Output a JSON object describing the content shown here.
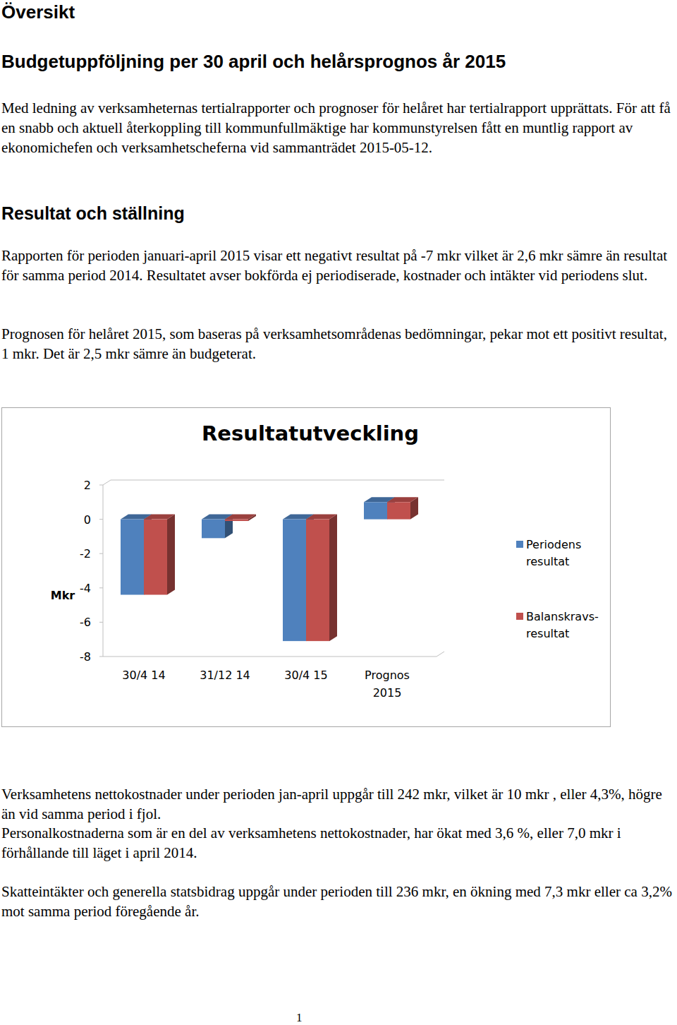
{
  "document": {
    "heading": "Översikt",
    "title": "Budgetuppföljning per 30 april och helårsprognos år 2015",
    "intro": "Med ledning av verksamheternas tertialrapporter och prognoser för helåret har tertialrapport upprättats. För att få en snabb och aktuell återkoppling till kommunfullmäktige har kommunstyrelsen fått en muntlig rapport av ekonomichefen och verksamhetscheferna vid sammanträdet 2015-05-12.",
    "section_heading": "Resultat och ställning",
    "paragraphs_before": [
      "Rapporten för perioden januari-april 2015 visar ett negativt resultat på -7 mkr vilket är 2,6 mkr sämre än resultat för samma period 2014. Resultatet avser bokförda ej periodiserade, kostnader och intäkter vid periodens slut.",
      "Prognosen för helåret 2015, som baseras på verksamhetsområdenas bedömningar, pekar mot ett positivt resultat, 1 mkr. Det är 2,5 mkr sämre än budgeterat."
    ],
    "paragraphs_after": [
      "Verksamhetens nettokostnader under perioden jan-april uppgår till 242 mkr, vilket är 10 mkr , eller 4,3%, högre än vid samma period i fjol.",
      "Personalkostnaderna som är en del av verksamhetens nettokostnader, har ökat med 3,6 %, eller 7,0 mkr i förhållande till läget i april 2014.",
      "Skatteintäkter och generella statsbidrag uppgår under perioden till 236 mkr, en ökning med 7,3 mkr eller ca 3,2% mot samma period föregående år."
    ],
    "page_number": "1"
  },
  "chart_data": {
    "type": "bar",
    "title": "Resultatutveckling",
    "y_label": "Mkr",
    "categories": [
      "30/4  14",
      "31/12 14",
      "30/4 15",
      "Prognos\n2015"
    ],
    "series": [
      {
        "name": "Periodens\nresultat",
        "color": "#4f81bd",
        "values": [
          -4.4,
          -1.1,
          -7.1,
          1.0
        ]
      },
      {
        "name": "Balanskravs-\nresultat",
        "color": "#c0504d",
        "values": [
          -4.4,
          -0.1,
          -7.1,
          1.0
        ]
      }
    ],
    "ylim": [
      -8,
      2
    ],
    "yticks": [
      -8,
      -6,
      -4,
      -2,
      0,
      2
    ],
    "grid": false,
    "legend": "right"
  }
}
